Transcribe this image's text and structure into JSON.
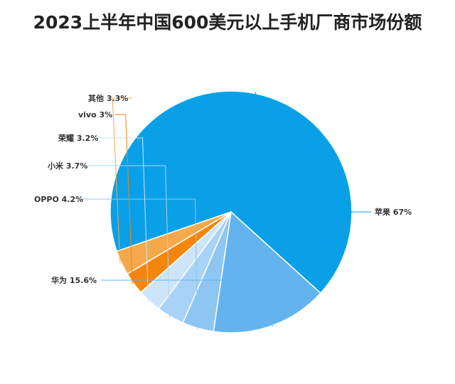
{
  "chart_data": {
    "type": "pie",
    "title": "2023上半年中国600美元以上手机厂商市场份额",
    "unit": "%",
    "slices": [
      {
        "label": "苹果",
        "value": 67,
        "display": "苹果 67%",
        "color": "#0aa0e8"
      },
      {
        "label": "华为",
        "value": 15.6,
        "display": "华为 15.6%",
        "color": "#63b4ee"
      },
      {
        "label": "OPPO",
        "value": 4.2,
        "display": "OPPO 4.2%",
        "color": "#8dc6f2"
      },
      {
        "label": "小米",
        "value": 3.7,
        "display": "小米 3.7%",
        "color": "#a9d3f6"
      },
      {
        "label": "荣耀",
        "value": 3.2,
        "display": "荣耀 3.2%",
        "color": "#cde5fa"
      },
      {
        "label": "vivo",
        "value": 3,
        "display": "vivo 3%",
        "color": "#f5860d"
      },
      {
        "label": "其他",
        "value": 3.3,
        "display": "其他 3.3%",
        "color": "#f5a94a"
      }
    ]
  }
}
